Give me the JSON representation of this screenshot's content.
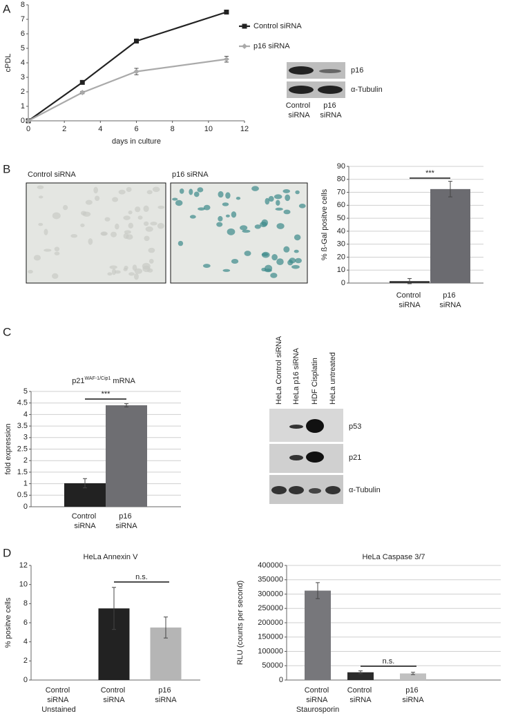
{
  "panel_labels": [
    "A",
    "B",
    "C",
    "D"
  ],
  "blot_a": {
    "bands": [
      "p16",
      "α-Tubulin"
    ],
    "lanes": [
      "Control siRNA",
      "p16 siRNA"
    ]
  },
  "images_b": {
    "labels": [
      "Control siRNA",
      "p16 siRNA"
    ]
  },
  "blot_c": {
    "lanes": [
      "HeLa Control siRNA",
      "HeLa p16 siRNA",
      "HDF Cisplatin",
      "HeLa untreated"
    ],
    "bands": [
      "p53",
      "p21",
      "α-Tubulin"
    ]
  },
  "chart_data": [
    {
      "type": "line",
      "xlabel": "days in culture",
      "ylabel": "cPDL",
      "x": [
        0,
        3,
        6,
        11
      ],
      "series": [
        {
          "name": "Control siRNA",
          "color": "#222222",
          "marker": "square",
          "values": [
            0,
            2.65,
            5.5,
            7.5
          ],
          "errors": [
            0,
            0.12,
            0.08,
            0.05
          ]
        },
        {
          "name": "p16 siRNA",
          "color": "#aaaaaa",
          "marker": "diamond",
          "values": [
            0,
            1.95,
            3.4,
            4.25
          ],
          "errors": [
            0,
            0.08,
            0.22,
            0.2
          ]
        }
      ],
      "xlim": [
        0,
        12
      ],
      "xticks": [
        0,
        2,
        4,
        6,
        8,
        10,
        12
      ],
      "ylim": [
        0,
        8
      ],
      "yticks": [
        0,
        1,
        2,
        3,
        4,
        5,
        6,
        7,
        8
      ],
      "legend": "right"
    },
    {
      "type": "bar",
      "ylabel": "% ß-Gal positve cells",
      "categories": [
        "Control siRNA",
        "p16 siRNA"
      ],
      "values": [
        1.5,
        72.5
      ],
      "errors": [
        2,
        6
      ],
      "colors": [
        "#333333",
        "#6b6b70"
      ],
      "ylim": [
        0,
        90
      ],
      "yticks": [
        0,
        10,
        20,
        30,
        40,
        50,
        60,
        70,
        80,
        90
      ],
      "grid": true,
      "annotation": "***"
    },
    {
      "type": "bar",
      "title": "p21",
      "title_superscript": "WAF-1/Cip1",
      "title_suffix": "mRNA",
      "ylabel": "fold expression",
      "categories": [
        "Control siRNA",
        "p16 siRNA"
      ],
      "values": [
        1.02,
        4.4
      ],
      "errors": [
        0.2,
        0.07
      ],
      "colors": [
        "#222222",
        "#6e6e72"
      ],
      "ylim": [
        0,
        5
      ],
      "yticks": [
        0,
        0.5,
        1,
        1.5,
        2,
        2.5,
        3,
        3.5,
        4,
        4.5,
        5
      ],
      "grid": true,
      "annotation": "***"
    },
    {
      "type": "bar",
      "title": "HeLa Annexin V",
      "ylabel": "% positve cells",
      "categories": [
        "Control siRNA Unstained",
        "Control siRNA",
        "p16 siRNA"
      ],
      "values": [
        0,
        7.5,
        5.5
      ],
      "errors": [
        0,
        2.2,
        1.1
      ],
      "colors": [
        "#ffffff",
        "#222222",
        "#b5b5b5"
      ],
      "ylim": [
        0,
        12
      ],
      "yticks": [
        0,
        2,
        4,
        6,
        8,
        10,
        12
      ],
      "grid": false,
      "annotation": "n.s."
    },
    {
      "type": "bar",
      "title": "HeLa Caspase 3/7",
      "ylabel": "RLU (counts per second)",
      "categories": [
        "Control siRNA Staurosporin",
        "Control siRNA",
        "p16 siRNA"
      ],
      "values": [
        312000,
        27000,
        23000
      ],
      "errors": [
        28000,
        5000,
        4000
      ],
      "colors": [
        "#77777b",
        "#2b2b2b",
        "#c0c0c0"
      ],
      "ylim": [
        0,
        400000
      ],
      "yticks": [
        0,
        50000,
        100000,
        150000,
        200000,
        250000,
        300000,
        350000,
        400000
      ],
      "grid": true,
      "annotation": "n.s."
    }
  ]
}
